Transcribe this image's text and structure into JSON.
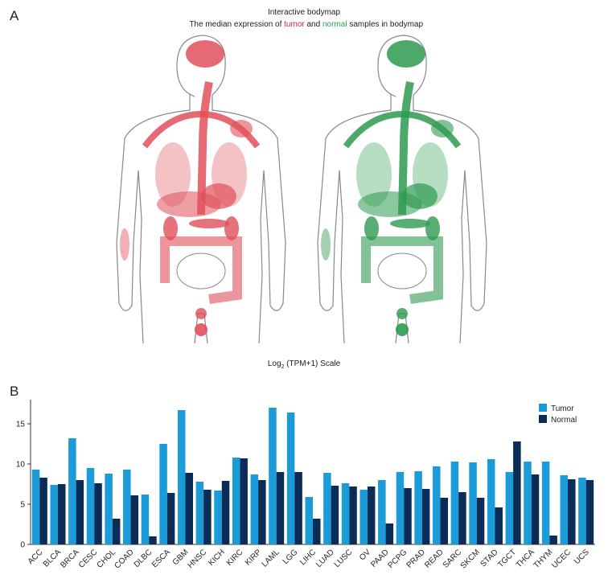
{
  "panel_a": {
    "label": "A",
    "title": "Interactive bodymap",
    "subtitle": [
      "The median expression of ",
      "tumor",
      " and ",
      "normal",
      " samples in bodymap"
    ],
    "scale_label": [
      "Log",
      "2",
      " (TPM+1) Scale"
    ]
  },
  "chart_data": {
    "type": "bar",
    "label": "B",
    "categories": [
      "ACC",
      "BLCA",
      "BRCA",
      "CESC",
      "CHOL",
      "COAD",
      "DLBC",
      "ESCA",
      "GBM",
      "HNSC",
      "KICH",
      "KIRC",
      "KIRP",
      "LAML",
      "LGG",
      "LIHC",
      "LUAD",
      "LUSC",
      "OV",
      "PAAD",
      "PCPG",
      "PRAD",
      "READ",
      "SARC",
      "SKCM",
      "STAD",
      "TGCT",
      "THCA",
      "THYM",
      "UCEC",
      "UCS"
    ],
    "series": [
      {
        "name": "Tumor",
        "color": "#1b9bd7",
        "values": [
          9.3,
          7.4,
          13.2,
          9.5,
          8.8,
          9.3,
          6.2,
          12.5,
          16.7,
          7.8,
          6.7,
          10.8,
          8.7,
          17.0,
          16.4,
          5.9,
          8.9,
          7.6,
          6.8,
          8.0,
          9.0,
          9.1,
          9.7,
          10.3,
          10.2,
          10.6,
          9.0,
          10.3,
          10.3,
          8.6,
          8.3
        ]
      },
      {
        "name": "Normal",
        "color": "#0b2c57",
        "values": [
          8.3,
          7.5,
          8.0,
          7.6,
          3.2,
          6.1,
          1.0,
          6.4,
          8.9,
          6.8,
          7.9,
          10.7,
          8.0,
          9.0,
          9.0,
          3.2,
          7.3,
          7.2,
          7.2,
          2.6,
          7.0,
          6.9,
          5.8,
          6.5,
          5.8,
          4.6,
          12.8,
          8.7,
          1.1,
          8.1,
          8.0
        ]
      }
    ],
    "ylim": [
      0,
      18
    ],
    "yticks": [
      0,
      5,
      10,
      15
    ],
    "legend": "top-right"
  }
}
